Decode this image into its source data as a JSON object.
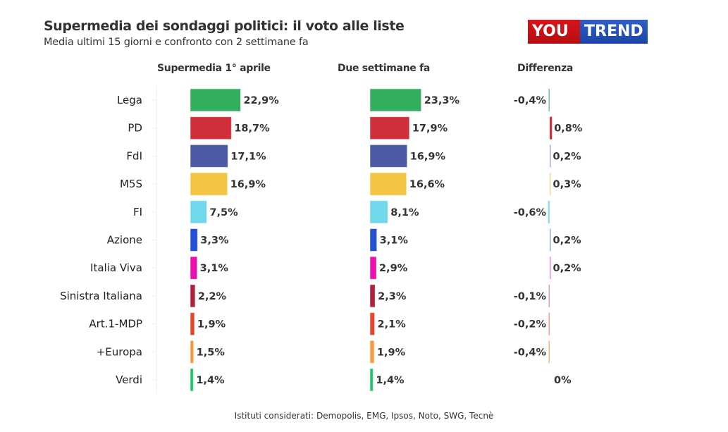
{
  "header": {
    "title": "Supermedia dei sondaggi politici: il voto alle liste",
    "subtitle": "Media ultimi 15 giorni e confronto con 2 settimane fa"
  },
  "logo": {
    "part1": "YOU",
    "part2": "TREND"
  },
  "columns": {
    "current": "Supermedia 1° aprile",
    "previous": "Due settimane fa",
    "diff": "Differenza"
  },
  "footer": "Istituti considerati: Demopolis, EMG, Ipsos, Noto, SWG, Tecnè",
  "chart_data": {
    "type": "bar",
    "title": "Supermedia dei sondaggi politici: il voto alle liste",
    "categories": [
      "Lega",
      "PD",
      "FdI",
      "M5S",
      "FI",
      "Azione",
      "Italia Viva",
      "Sinistra Italiana",
      "Art.1-MDP",
      "+Europa",
      "Verdi"
    ],
    "colors": [
      "#33ae5f",
      "#d0303a",
      "#4c5aa6",
      "#f6c443",
      "#6fd8ea",
      "#2350d4",
      "#ea10b0",
      "#b0203a",
      "#e8462a",
      "#f99a3a",
      "#1dc46a"
    ],
    "series": [
      {
        "name": "Supermedia 1° aprile",
        "values": [
          22.9,
          18.7,
          17.1,
          16.9,
          7.5,
          3.3,
          3.1,
          2.2,
          1.9,
          1.5,
          1.4
        ],
        "labels": [
          "22,9%",
          "18,7%",
          "17,1%",
          "16,9%",
          "7,5%",
          "3,3%",
          "3,1%",
          "2,2%",
          "1,9%",
          "1,5%",
          "1,4%"
        ]
      },
      {
        "name": "Due settimane fa",
        "values": [
          23.3,
          17.9,
          16.9,
          16.6,
          8.1,
          3.1,
          2.9,
          2.3,
          2.1,
          1.9,
          1.4
        ],
        "labels": [
          "23,3%",
          "17,9%",
          "16,9%",
          "16,6%",
          "8,1%",
          "3,1%",
          "2,9%",
          "2,3%",
          "2,1%",
          "1,9%",
          "1,4%"
        ]
      },
      {
        "name": "Differenza",
        "values": [
          -0.4,
          0.8,
          0.2,
          0.3,
          -0.6,
          0.2,
          0.2,
          -0.1,
          -0.2,
          -0.4,
          0
        ],
        "labels": [
          "-0,4%",
          "0,8%",
          "0,2%",
          "0,3%",
          "-0,6%",
          "0,2%",
          "0,2%",
          "-0,1%",
          "-0,2%",
          "-0,4%",
          "0%"
        ]
      }
    ],
    "xlabel": "",
    "ylabel": "",
    "grid": false
  }
}
